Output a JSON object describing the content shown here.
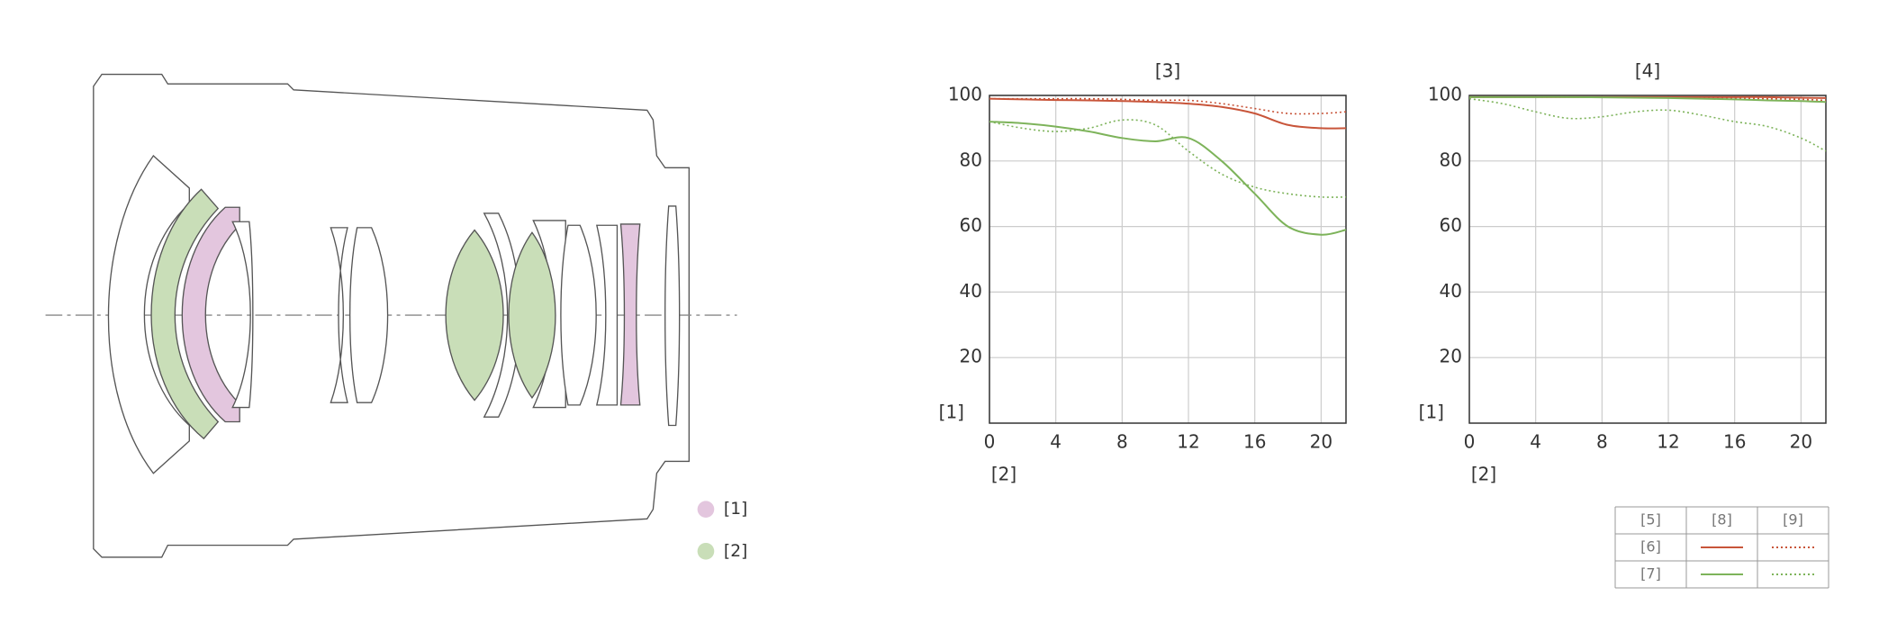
{
  "lens_legend": {
    "items": [
      "[1]",
      "[2]"
    ]
  },
  "chart_data": [
    {
      "type": "line",
      "title": "[3]",
      "y_label": "[1]",
      "x_label": "[2]",
      "x": [
        0,
        2,
        4,
        6,
        8,
        10,
        12,
        14,
        16,
        18,
        20,
        21.5
      ],
      "xlim": [
        0,
        21.5
      ],
      "xticks": [
        0,
        4,
        8,
        12,
        16,
        20
      ],
      "ylim": [
        0,
        100
      ],
      "yticks": [
        20,
        40,
        60,
        80,
        100
      ],
      "grid": true,
      "series": [
        {
          "color": "#c8553a",
          "style": "solid",
          "values": [
            99,
            98.8,
            98.6,
            98.5,
            98.3,
            98,
            97.5,
            96.5,
            94.5,
            91,
            90,
            90
          ]
        },
        {
          "color": "#c8553a",
          "style": "dotted",
          "values": [
            99,
            99,
            99,
            99,
            98.8,
            98.5,
            98.5,
            97.5,
            96,
            94.5,
            94.5,
            95
          ]
        },
        {
          "color": "#7db35a",
          "style": "solid",
          "values": [
            92,
            91.5,
            90.5,
            89,
            87,
            86,
            87,
            80,
            70,
            60,
            57.5,
            59
          ]
        },
        {
          "color": "#7db35a",
          "style": "dotted",
          "values": [
            92,
            90,
            89,
            90,
            92.5,
            91,
            83,
            76,
            72,
            70,
            69,
            69
          ]
        }
      ]
    },
    {
      "type": "line",
      "title": "[4]",
      "y_label": "[1]",
      "x_label": "[2]",
      "x": [
        0,
        2,
        4,
        6,
        8,
        10,
        12,
        14,
        16,
        18,
        20,
        21.5
      ],
      "xlim": [
        0,
        21.5
      ],
      "xticks": [
        0,
        4,
        8,
        12,
        16,
        20
      ],
      "ylim": [
        0,
        100
      ],
      "yticks": [
        20,
        40,
        60,
        80,
        100
      ],
      "grid": true,
      "series": [
        {
          "color": "#c8553a",
          "style": "solid",
          "values": [
            99.5,
            99.5,
            99.5,
            99.5,
            99.5,
            99.5,
            99.5,
            99.5,
            99.5,
            99.5,
            99.3,
            99.2
          ]
        },
        {
          "color": "#c8553a",
          "style": "dotted",
          "values": [
            99.5,
            99.5,
            99.5,
            99.5,
            99.5,
            99.5,
            99.4,
            99.3,
            99.2,
            99,
            98.8,
            98.5
          ]
        },
        {
          "color": "#7db35a",
          "style": "solid",
          "values": [
            99.5,
            99.5,
            99.5,
            99.5,
            99.4,
            99.3,
            99.2,
            99,
            98.8,
            98.5,
            98.3,
            98
          ]
        },
        {
          "color": "#7db35a",
          "style": "dotted",
          "values": [
            99,
            97.5,
            95,
            93,
            93.5,
            95,
            95.5,
            94,
            92,
            90.5,
            87,
            83
          ]
        }
      ]
    }
  ],
  "legend_table": {
    "header": [
      "[5]",
      "[8]",
      "[9]"
    ],
    "rows": [
      "[6]",
      "[7]"
    ]
  }
}
